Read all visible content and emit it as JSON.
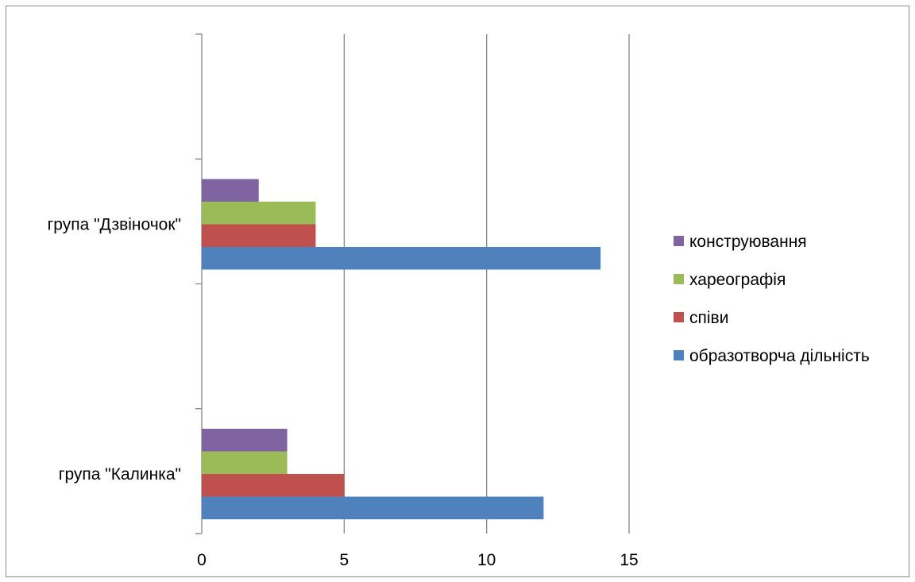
{
  "chart_data": {
    "type": "bar",
    "orientation": "horizontal",
    "categories": [
      "група \"Калинка\"",
      "група \"Дзвіночок\""
    ],
    "series": [
      {
        "name": "образотворча дільність",
        "color": "#4f81bd",
        "values": [
          12,
          14
        ]
      },
      {
        "name": "співи",
        "color": "#c0504d",
        "values": [
          5,
          4
        ]
      },
      {
        "name": "хареографія",
        "color": "#9bbb59",
        "values": [
          3,
          4
        ]
      },
      {
        "name": "конструювання",
        "color": "#8064a2",
        "values": [
          3,
          2
        ]
      }
    ],
    "xlim": [
      0,
      15
    ],
    "x_ticks": [
      "0",
      "5",
      "10",
      "15"
    ],
    "grid": "vertical",
    "legend_position": "right",
    "legend_order": [
      "конструювання",
      "хареографія",
      "співи",
      "образотворча дільність"
    ]
  }
}
